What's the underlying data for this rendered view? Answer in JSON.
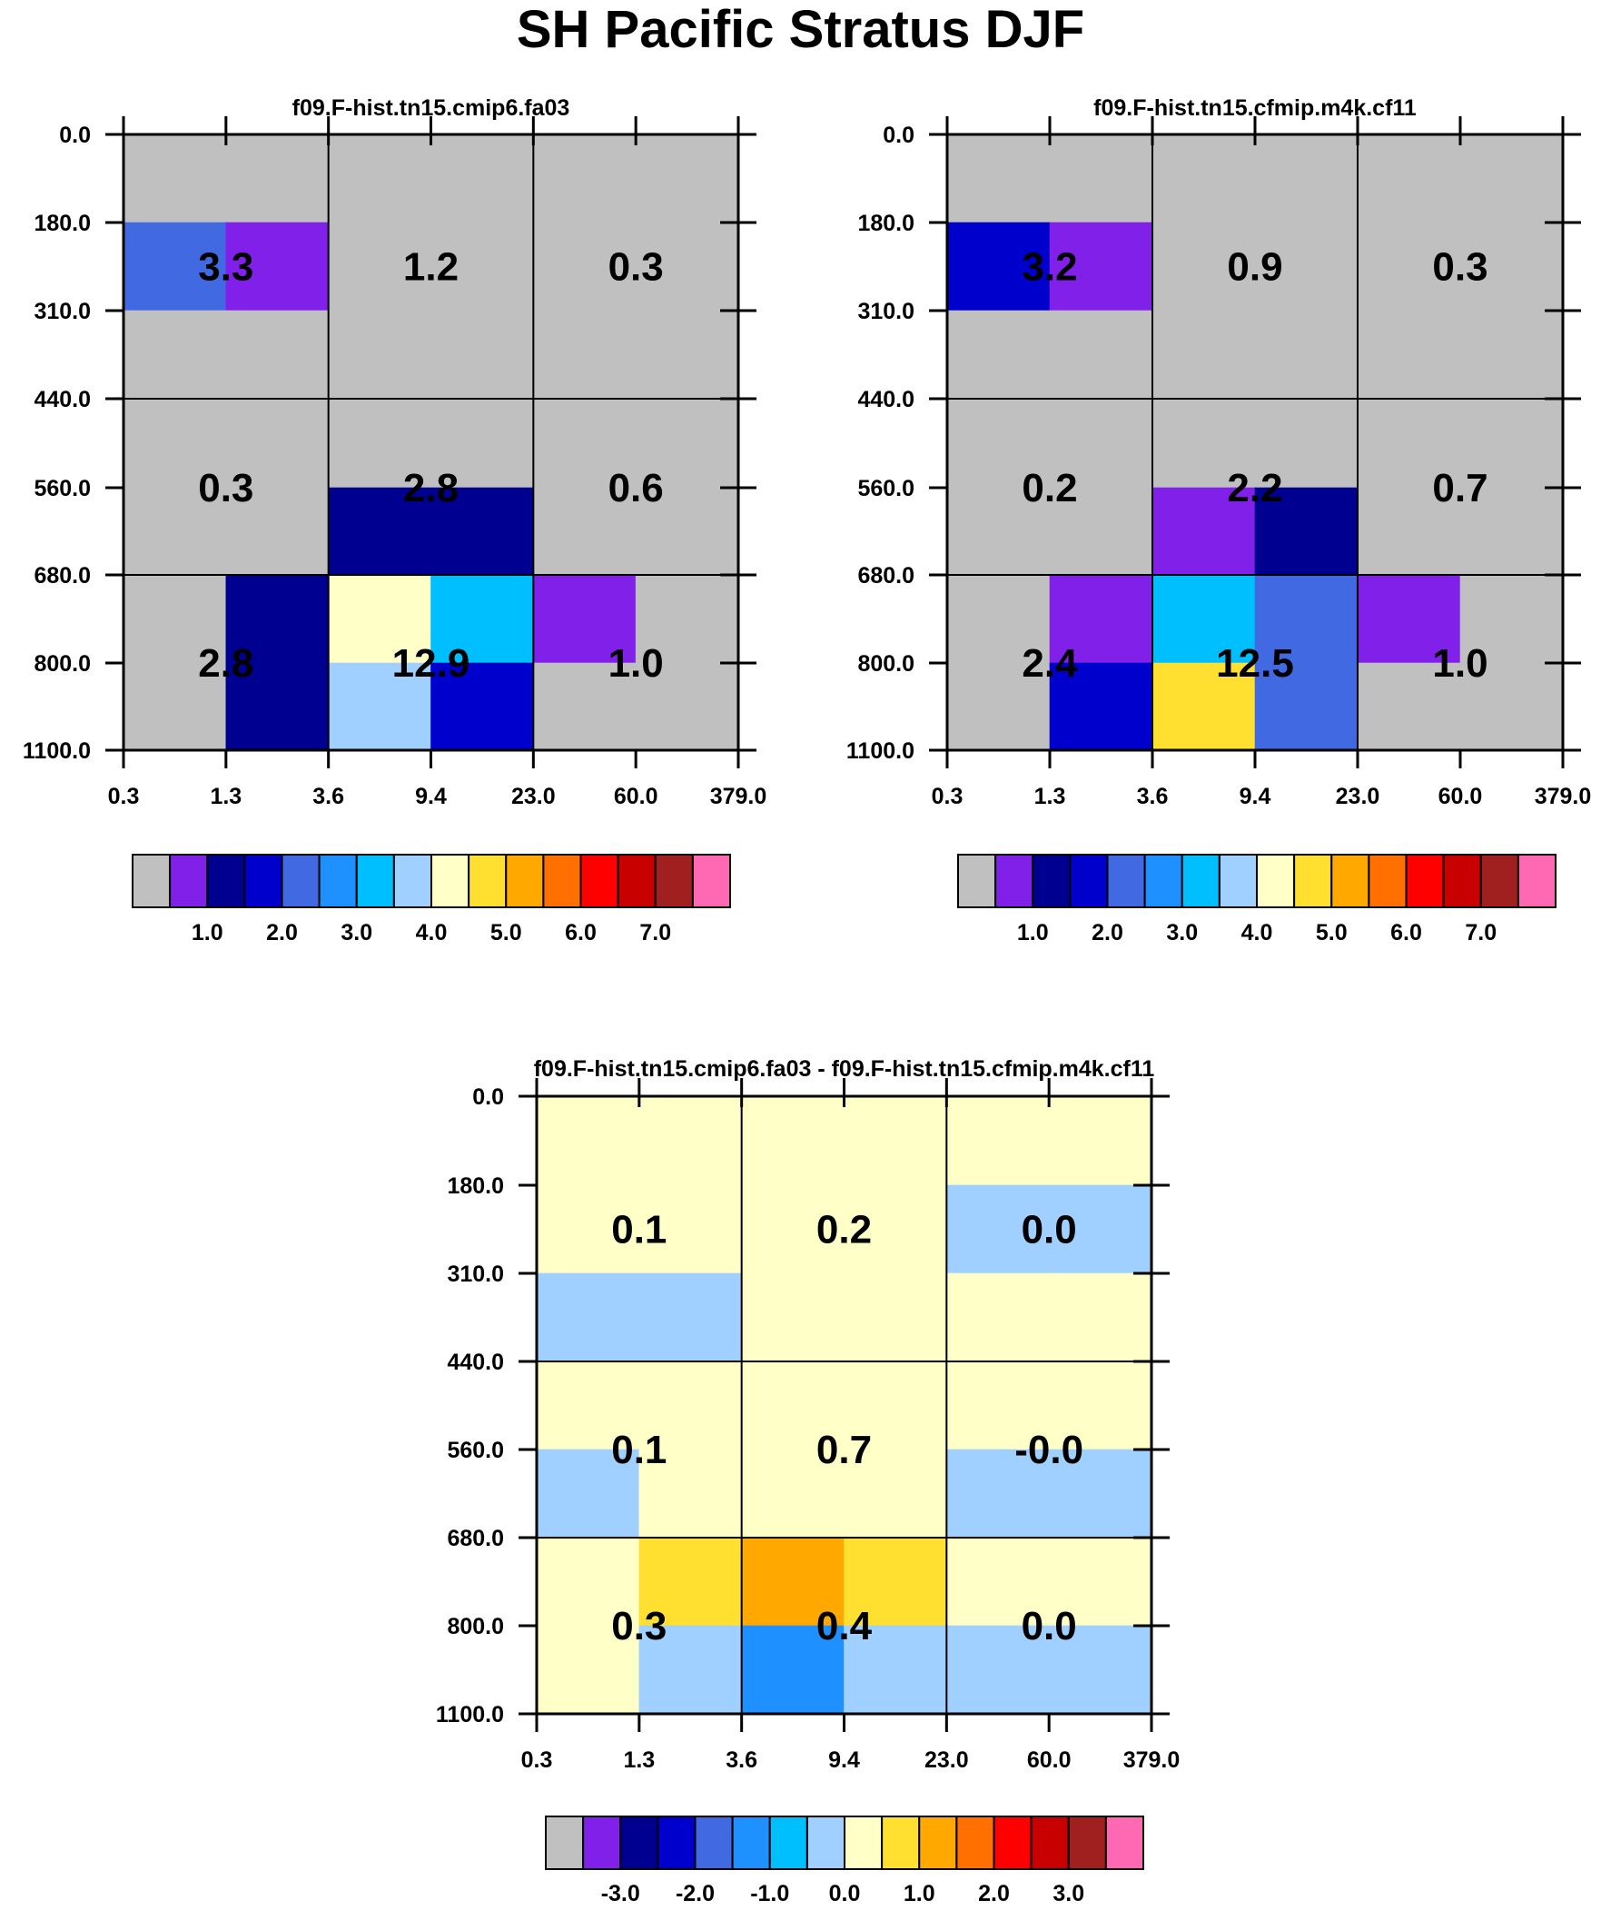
{
  "title": "SH Pacific Stratus DJF",
  "chart_data": [
    {
      "type": "heatmap",
      "title": "f09.F-hist.tn15.cmip6.fa03",
      "x_ticks": [
        "0.3",
        "1.3",
        "3.6",
        "9.4",
        "23.0",
        "60.0",
        "379.0"
      ],
      "y_ticks": [
        "0.0",
        "180.0",
        "310.0",
        "440.0",
        "560.0",
        "680.0",
        "800.0",
        "1100.0"
      ],
      "cell_levels": [
        [
          0,
          0,
          0,
          0,
          0,
          0
        ],
        [
          4,
          1,
          0,
          0,
          0,
          0
        ],
        [
          0,
          0,
          0,
          0,
          0,
          0
        ],
        [
          0,
          0,
          0,
          0,
          0,
          0
        ],
        [
          0,
          0,
          2,
          2,
          0,
          0
        ],
        [
          0,
          2,
          8,
          6,
          1,
          0
        ],
        [
          0,
          2,
          7,
          3,
          0,
          0
        ]
      ],
      "box_values": [
        [
          "3.3",
          "1.2",
          "0.3"
        ],
        [
          "0.3",
          "2.8",
          "0.6"
        ],
        [
          "2.8",
          "12.9",
          "1.0"
        ]
      ],
      "colorbar": {
        "colors": [
          "#c0c0c0",
          "#8020e8",
          "#000090",
          "#0000cc",
          "#4169e1",
          "#1e90ff",
          "#00bfff",
          "#a0d0ff",
          "#ffffc8",
          "#ffe030",
          "#ffa800",
          "#ff7000",
          "#ff0000",
          "#c80000",
          "#a02020",
          "#ff69b4"
        ],
        "labels": [
          "1.0",
          "2.0",
          "3.0",
          "4.0",
          "5.0",
          "6.0",
          "7.0"
        ]
      }
    },
    {
      "type": "heatmap",
      "title": "f09.F-hist.tn15.cfmip.m4k.cf11",
      "x_ticks": [
        "0.3",
        "1.3",
        "3.6",
        "9.4",
        "23.0",
        "60.0",
        "379.0"
      ],
      "y_ticks": [
        "0.0",
        "180.0",
        "310.0",
        "440.0",
        "560.0",
        "680.0",
        "800.0",
        "1100.0"
      ],
      "cell_levels": [
        [
          0,
          0,
          0,
          0,
          0,
          0
        ],
        [
          3,
          1,
          0,
          0,
          0,
          0
        ],
        [
          0,
          0,
          0,
          0,
          0,
          0
        ],
        [
          0,
          0,
          0,
          0,
          0,
          0
        ],
        [
          0,
          0,
          1,
          2,
          0,
          0
        ],
        [
          0,
          1,
          6,
          4,
          1,
          0
        ],
        [
          0,
          3,
          9,
          4,
          0,
          0
        ]
      ],
      "box_values": [
        [
          "3.2",
          "0.9",
          "0.3"
        ],
        [
          "0.2",
          "2.2",
          "0.7"
        ],
        [
          "2.4",
          "12.5",
          "1.0"
        ]
      ],
      "colorbar": {
        "colors": [
          "#c0c0c0",
          "#8020e8",
          "#000090",
          "#0000cc",
          "#4169e1",
          "#1e90ff",
          "#00bfff",
          "#a0d0ff",
          "#ffffc8",
          "#ffe030",
          "#ffa800",
          "#ff7000",
          "#ff0000",
          "#c80000",
          "#a02020",
          "#ff69b4"
        ],
        "labels": [
          "1.0",
          "2.0",
          "3.0",
          "4.0",
          "5.0",
          "6.0",
          "7.0"
        ]
      }
    },
    {
      "type": "heatmap",
      "title": "f09.F-hist.tn15.cmip6.fa03 - f09.F-hist.tn15.cfmip.m4k.cf11",
      "x_ticks": [
        "0.3",
        "1.3",
        "3.6",
        "9.4",
        "23.0",
        "60.0",
        "379.0"
      ],
      "y_ticks": [
        "0.0",
        "180.0",
        "310.0",
        "440.0",
        "560.0",
        "680.0",
        "800.0",
        "1100.0"
      ],
      "cell_levels": [
        [
          8,
          8,
          8,
          8,
          8,
          8
        ],
        [
          8,
          8,
          8,
          8,
          7,
          7
        ],
        [
          7,
          7,
          8,
          8,
          8,
          8
        ],
        [
          8,
          8,
          8,
          8,
          8,
          8
        ],
        [
          7,
          8,
          8,
          8,
          7,
          7
        ],
        [
          8,
          9,
          10,
          9,
          8,
          8
        ],
        [
          8,
          7,
          5,
          7,
          7,
          7
        ]
      ],
      "box_values": [
        [
          "0.1",
          "0.2",
          "0.0"
        ],
        [
          "0.1",
          "0.7",
          "-0.0"
        ],
        [
          "0.3",
          "0.4",
          "0.0"
        ]
      ],
      "colorbar": {
        "colors": [
          "#c0c0c0",
          "#8020e8",
          "#000090",
          "#0000cc",
          "#4169e1",
          "#1e90ff",
          "#00bfff",
          "#a0d0ff",
          "#ffffc8",
          "#ffe030",
          "#ffa800",
          "#ff7000",
          "#ff0000",
          "#c80000",
          "#a02020",
          "#ff69b4"
        ],
        "labels": [
          "-3.0",
          "-2.0",
          "-1.0",
          "0.0",
          "1.0",
          "2.0",
          "3.0"
        ]
      }
    }
  ]
}
